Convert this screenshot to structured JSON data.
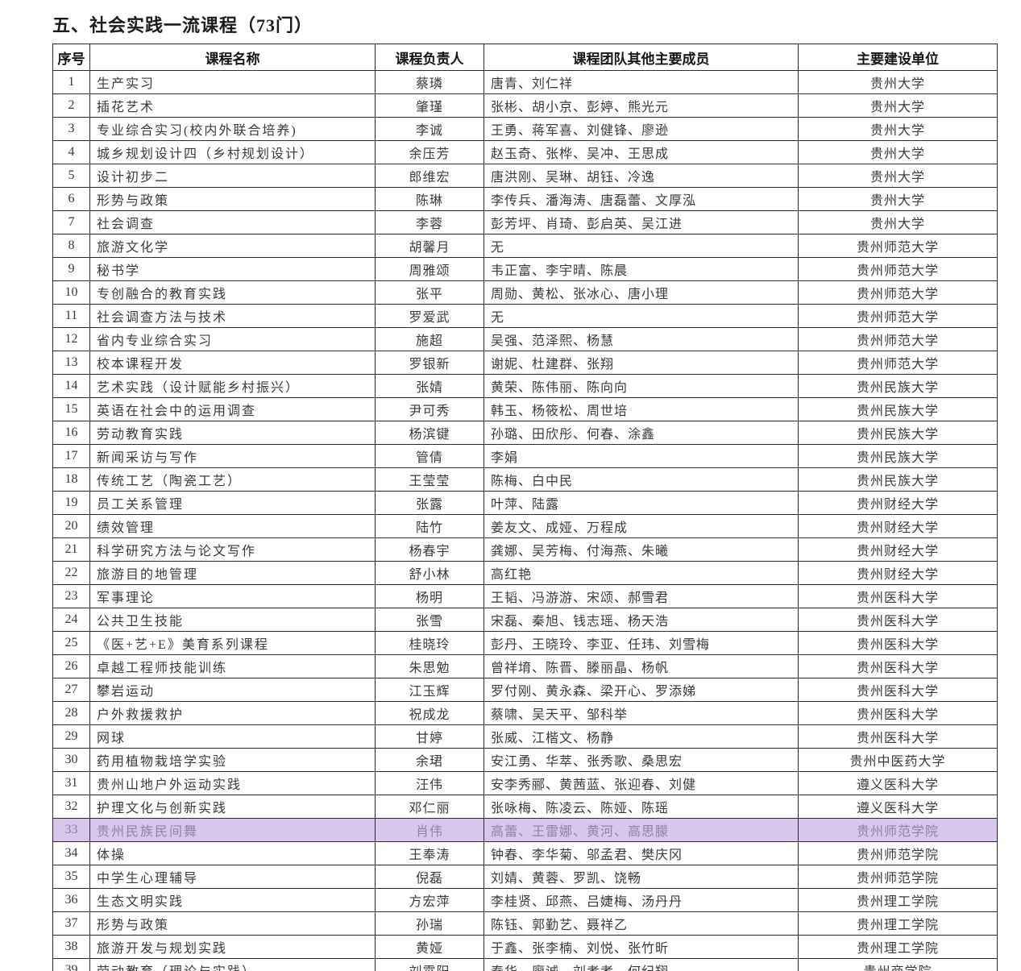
{
  "page": {
    "title": "五、社会实践一流课程（73门）"
  },
  "table": {
    "headers": {
      "no": "序号",
      "course": "课程名称",
      "leader": "课程负责人",
      "team": "课程团队其他主要成员",
      "unit": "主要建设单位"
    },
    "highlighted_row_no": "33",
    "highlight_color": "#d8c6ec",
    "highlight_text_color": "#8f81a8",
    "rows": [
      {
        "no": "1",
        "course": "生产实习",
        "leader": "蔡璘",
        "team": "唐青、刘仁祥",
        "unit": "贵州大学"
      },
      {
        "no": "2",
        "course": "插花艺术",
        "leader": "肇瑾",
        "team": "张彬、胡小京、彭婷、熊光元",
        "unit": "贵州大学"
      },
      {
        "no": "3",
        "course": "专业综合实习(校内外联合培养)",
        "leader": "李诚",
        "team": "王勇、蒋军喜、刘健锋、廖逊",
        "unit": "贵州大学"
      },
      {
        "no": "4",
        "course": "城乡规划设计四（乡村规划设计）",
        "leader": "余压芳",
        "team": "赵玉奇、张桦、吴冲、王思成",
        "unit": "贵州大学"
      },
      {
        "no": "5",
        "course": "设计初步二",
        "leader": "郎维宏",
        "team": "唐洪刚、吴琳、胡钰、冷逸",
        "unit": "贵州大学"
      },
      {
        "no": "6",
        "course": "形势与政策",
        "leader": "陈琳",
        "team": "李传兵、潘海涛、唐磊蕾、文厚泓",
        "unit": "贵州大学"
      },
      {
        "no": "7",
        "course": "社会调查",
        "leader": "李蓉",
        "team": "彭芳坪、肖琦、彭启英、吴江进",
        "unit": "贵州大学"
      },
      {
        "no": "8",
        "course": "旅游文化学",
        "leader": "胡馨月",
        "team": "无",
        "unit": "贵州师范大学"
      },
      {
        "no": "9",
        "course": "秘书学",
        "leader": "周雅颂",
        "team": "韦正富、李宇晴、陈晨",
        "unit": "贵州师范大学"
      },
      {
        "no": "10",
        "course": "专创融合的教育实践",
        "leader": "张平",
        "team": "周勋、黄松、张冰心、唐小理",
        "unit": "贵州师范大学"
      },
      {
        "no": "11",
        "course": "社会调查方法与技术",
        "leader": "罗爱武",
        "team": "无",
        "unit": "贵州师范大学"
      },
      {
        "no": "12",
        "course": "省内专业综合实习",
        "leader": "施超",
        "team": "吴强、范泽熙、杨慧",
        "unit": "贵州师范大学"
      },
      {
        "no": "13",
        "course": "校本课程开发",
        "leader": "罗银新",
        "team": "谢妮、杜建群、张翔",
        "unit": "贵州师范大学"
      },
      {
        "no": "14",
        "course": "艺术实践（设计赋能乡村振兴）",
        "leader": "张婧",
        "team": "黄荣、陈伟丽、陈向向",
        "unit": "贵州民族大学"
      },
      {
        "no": "15",
        "course": "英语在社会中的运用调查",
        "leader": "尹可秀",
        "team": "韩玉、杨筱松、周世培",
        "unit": "贵州民族大学"
      },
      {
        "no": "16",
        "course": "劳动教育实践",
        "leader": "杨滨键",
        "team": "孙璐、田欣彤、何春、涂鑫",
        "unit": "贵州民族大学"
      },
      {
        "no": "17",
        "course": "新闻采访与写作",
        "leader": "管倩",
        "team": "李娟",
        "unit": "贵州民族大学"
      },
      {
        "no": "18",
        "course": "传统工艺（陶瓷工艺）",
        "leader": "王莹莹",
        "team": "陈梅、白中民",
        "unit": "贵州民族大学"
      },
      {
        "no": "19",
        "course": "员工关系管理",
        "leader": "张露",
        "team": "叶萍、陆露",
        "unit": "贵州财经大学"
      },
      {
        "no": "20",
        "course": "绩效管理",
        "leader": "陆竹",
        "team": "姜友文、成娅、万程成",
        "unit": "贵州财经大学"
      },
      {
        "no": "21",
        "course": "科学研究方法与论文写作",
        "leader": "杨春宇",
        "team": "龚娜、吴芳梅、付海燕、朱曦",
        "unit": "贵州财经大学"
      },
      {
        "no": "22",
        "course": "旅游目的地管理",
        "leader": "舒小林",
        "team": "高红艳",
        "unit": "贵州财经大学"
      },
      {
        "no": "23",
        "course": "军事理论",
        "leader": "杨明",
        "team": "王韬、冯游游、宋颂、郝雪君",
        "unit": "贵州医科大学"
      },
      {
        "no": "24",
        "course": "公共卫生技能",
        "leader": "张雪",
        "team": "宋磊、秦旭、钱志瑶、杨天浩",
        "unit": "贵州医科大学"
      },
      {
        "no": "25",
        "course": "《医+艺+E》美育系列课程",
        "leader": "桂晓玲",
        "team": "彭丹、王晓玲、李亚、任玮、刘雪梅",
        "unit": "贵州医科大学"
      },
      {
        "no": "26",
        "course": "卓越工程师技能训练",
        "leader": "朱思勉",
        "team": "曾祥堉、陈晋、滕丽晶、杨帆",
        "unit": "贵州医科大学"
      },
      {
        "no": "27",
        "course": "攀岩运动",
        "leader": "江玉辉",
        "team": "罗付刚、黄永森、梁开心、罗添娣",
        "unit": "贵州医科大学"
      },
      {
        "no": "28",
        "course": "户外救援救护",
        "leader": "祝成龙",
        "team": "蔡啸、吴天平、邹科举",
        "unit": "贵州医科大学"
      },
      {
        "no": "29",
        "course": "网球",
        "leader": "甘婷",
        "team": "张威、江楷文、杨静",
        "unit": "贵州医科大学"
      },
      {
        "no": "30",
        "course": "药用植物栽培学实验",
        "leader": "余珺",
        "team": "安江勇、华萃、张秀歌、桑思宏",
        "unit": "贵州中医药大学"
      },
      {
        "no": "31",
        "course": "贵州山地户外运动实践",
        "leader": "汪伟",
        "team": "安李秀郦、黄茜蓝、张迎春、刘健",
        "unit": "遵义医科大学"
      },
      {
        "no": "32",
        "course": "护理文化与创新实践",
        "leader": "邓仁丽",
        "team": "张咏梅、陈凌云、陈娅、陈瑶",
        "unit": "遵义医科大学"
      },
      {
        "no": "33",
        "course": "贵州民族民间舞",
        "leader": "肖伟",
        "team": "高蕾、王雷娜、黄河、高思朦",
        "unit": "贵州师范学院"
      },
      {
        "no": "34",
        "course": "体操",
        "leader": "王奉涛",
        "team": "钟春、李华菊、邬孟君、樊庆冈",
        "unit": "贵州师范学院"
      },
      {
        "no": "35",
        "course": "中学生心理辅导",
        "leader": "倪磊",
        "team": "刘婧、黄蓉、罗凯、饶畅",
        "unit": "贵州师范学院"
      },
      {
        "no": "36",
        "course": "生态文明实践",
        "leader": "方宏萍",
        "team": "李桂贤、邱燕、吕婕梅、汤丹丹",
        "unit": "贵州理工学院"
      },
      {
        "no": "37",
        "course": "形势与政策",
        "leader": "孙瑞",
        "team": "陈钰、郭勤艺、聂祥乙",
        "unit": "贵州理工学院"
      },
      {
        "no": "38",
        "course": "旅游开发与规划实践",
        "leader": "黄娅",
        "team": "于鑫、张李楠、刘悦、张竹昕",
        "unit": "贵州理工学院"
      },
      {
        "no": "39",
        "course": "劳动教育（理论与实践）",
        "leader": "刘霄阳",
        "team": "秦华、廖诚、刘孝孝、何纪翔",
        "unit": "贵州商学院"
      }
    ]
  }
}
